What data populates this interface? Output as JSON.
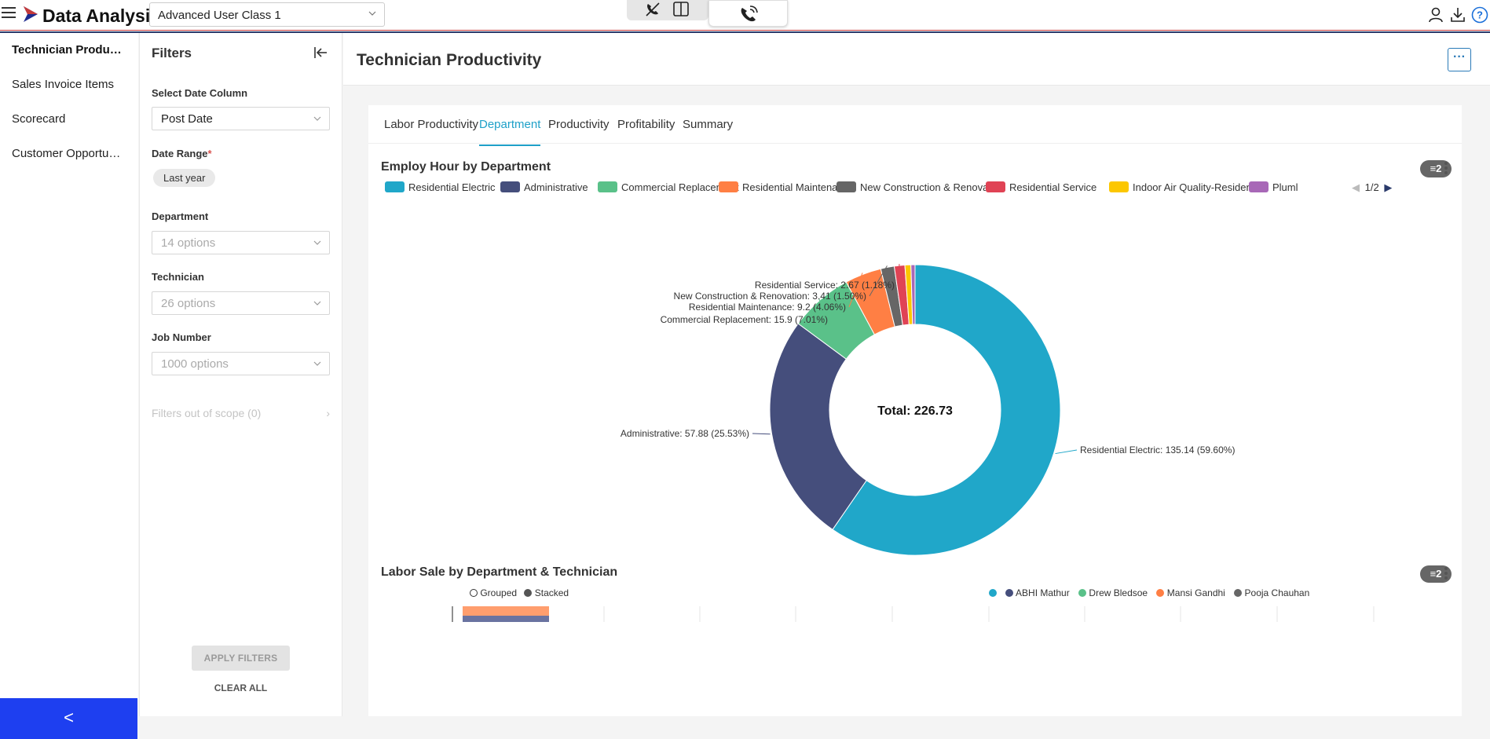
{
  "app": {
    "title": "Data Analysis",
    "user_select": "Advanced User Class 1"
  },
  "leftnav": {
    "items": [
      {
        "label": "Technician Producti...",
        "active": true
      },
      {
        "label": "Sales Invoice Items",
        "active": false
      },
      {
        "label": "Scorecard",
        "active": false
      },
      {
        "label": "Customer Opportuni...",
        "active": false
      }
    ],
    "collapse_label": "<"
  },
  "filters": {
    "title": "Filters",
    "date_column_label": "Select Date Column",
    "date_column_value": "Post Date",
    "date_range_label": "Date Range",
    "date_range_required": "*",
    "date_range_chip": "Last year",
    "department_label": "Department",
    "department_placeholder": "14 options",
    "technician_label": "Technician",
    "technician_placeholder": "26 options",
    "job_label": "Job Number",
    "job_placeholder": "1000 options",
    "out_of_scope": "Filters out of scope (0)",
    "apply_label": "APPLY FILTERS",
    "clear_label": "CLEAR ALL"
  },
  "page": {
    "title": "Technician Productivity",
    "more_label": "···"
  },
  "tabs": [
    {
      "label": "Labor Productivity",
      "active": false
    },
    {
      "label": "Department",
      "active": true
    },
    {
      "label": "Productivity",
      "active": false
    },
    {
      "label": "Profitability",
      "active": false
    },
    {
      "label": "Summary",
      "active": false
    }
  ],
  "chart1": {
    "title": "Employ Hour by Department",
    "filter_count": "2",
    "legend_pager": "1/2",
    "legend_visible": [
      {
        "name": "Residential Electric",
        "color": "#20A7C9"
      },
      {
        "name": "Administrative",
        "color": "#454E7C"
      },
      {
        "name": "Commercial Replacement",
        "color": "#5AC189"
      },
      {
        "name": "Residential Maintenance",
        "color": "#FF7F44"
      },
      {
        "name": "New Construction & Renovation",
        "color": "#666666"
      },
      {
        "name": "Residential Service",
        "color": "#E04355"
      },
      {
        "name": "Indoor Air Quality-Residential",
        "color": "#FCC700"
      },
      {
        "name": "Pluml",
        "color": "#A868B7"
      }
    ]
  },
  "chart_data": [
    {
      "type": "pie",
      "title": "Employ Hour by Department",
      "donut": true,
      "center_label": "Total: 226.73",
      "slices": [
        {
          "name": "Residential Electric",
          "value": 135.14,
          "label": "Residential Electric: 135.14 (59.60%)",
          "color": "#20A7C9"
        },
        {
          "name": "Administrative",
          "value": 57.88,
          "label": "Administrative: 57.88 (25.53%)",
          "color": "#454E7C"
        },
        {
          "name": "Commercial Replacement",
          "value": 15.9,
          "label": "Commercial Replacement: 15.9 (7.01%)",
          "color": "#5AC189"
        },
        {
          "name": "Residential Maintenance",
          "value": 9.2,
          "label": "Residential Maintenance: 9.2 (4.06%)",
          "color": "#FF7F44"
        },
        {
          "name": "New Construction & Renovation",
          "value": 3.41,
          "label": "New Construction & Renovation: 3.41 (1.50%)",
          "color": "#666666"
        },
        {
          "name": "Residential Service",
          "value": 2.67,
          "label": "Residential Service: 2.67 (1.18%)",
          "color": "#E04355"
        },
        {
          "name": "Indoor Air Quality-Residential",
          "value": 1.5,
          "label": "",
          "color": "#FCC700"
        },
        {
          "name": "Pluml",
          "value": 1.03,
          "label": "",
          "color": "#A868B7"
        }
      ]
    },
    {
      "type": "bar",
      "title": "Labor Sale by Department & Technician",
      "mode_options": [
        "Grouped",
        "Stacked"
      ],
      "selected_mode": "Stacked",
      "series": [
        {
          "name": "",
          "color": "#20A7C9"
        },
        {
          "name": "ABHI Mathur",
          "color": "#454E7C"
        },
        {
          "name": "Drew Bledsoe",
          "color": "#5AC189"
        },
        {
          "name": "Mansi Gandhi",
          "color": "#FF7F44"
        },
        {
          "name": "Pooja Chauhan",
          "color": "#666666"
        }
      ]
    }
  ],
  "chart2": {
    "title": "Labor Sale by Department & Technician",
    "filter_count": "2"
  }
}
